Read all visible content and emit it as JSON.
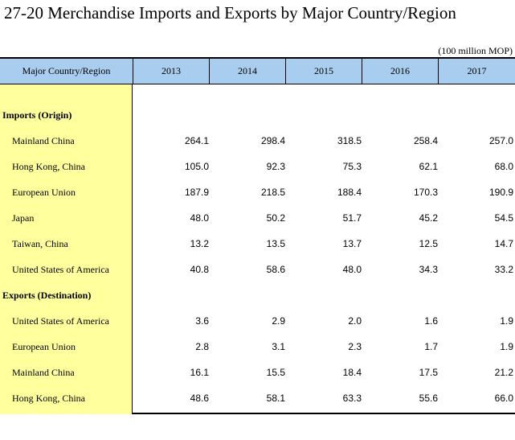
{
  "title": "27-20  Merchandise Imports and Exports by Major Country/Region",
  "unit": "(100 million MOP)",
  "header": {
    "label": "Major Country/Region",
    "years": [
      "2013",
      "2014",
      "2015",
      "2016",
      "2017"
    ]
  },
  "sections": [
    {
      "name": "Imports (Origin)",
      "rows": [
        {
          "label": "Mainland China",
          "values": [
            "264.1",
            "298.4",
            "318.5",
            "258.4",
            "257.0"
          ]
        },
        {
          "label": "Hong Kong, China",
          "values": [
            "105.0",
            "92.3",
            "75.3",
            "62.1",
            "68.0"
          ]
        },
        {
          "label": "European Union",
          "values": [
            "187.9",
            "218.5",
            "188.4",
            "170.3",
            "190.9"
          ]
        },
        {
          "label": "Japan",
          "values": [
            "48.0",
            "50.2",
            "51.7",
            "45.2",
            "54.5"
          ]
        },
        {
          "label": "Taiwan, China",
          "values": [
            "13.2",
            "13.5",
            "13.7",
            "12.5",
            "14.7"
          ]
        },
        {
          "label": "United States of America",
          "values": [
            "40.8",
            "58.6",
            "48.0",
            "34.3",
            "33.2"
          ]
        }
      ]
    },
    {
      "name": "Exports (Destination)",
      "rows": [
        {
          "label": "United States of America",
          "values": [
            "3.6",
            "2.9",
            "2.0",
            "1.6",
            "1.9"
          ]
        },
        {
          "label": "European Union",
          "values": [
            "2.8",
            "3.1",
            "2.3",
            "1.7",
            "1.9"
          ]
        },
        {
          "label": "Mainland China",
          "values": [
            "16.1",
            "15.5",
            "18.4",
            "17.5",
            "21.2"
          ]
        },
        {
          "label": "Hong Kong, China",
          "values": [
            "48.6",
            "58.1",
            "63.3",
            "55.6",
            "66.0"
          ]
        }
      ]
    }
  ]
}
